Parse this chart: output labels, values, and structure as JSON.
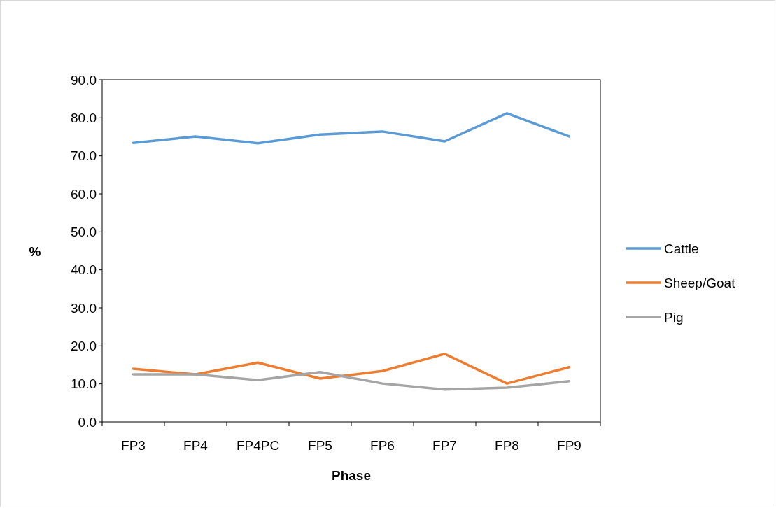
{
  "chart_data": {
    "type": "line",
    "xlabel": "Phase",
    "ylabel": "%",
    "categories": [
      "FP3",
      "FP4",
      "FP4PC",
      "FP5",
      "FP6",
      "FP7",
      "FP8",
      "FP9"
    ],
    "series": [
      {
        "name": "Cattle",
        "color": "#5b9bd5",
        "values": [
          73.4,
          75.1,
          73.3,
          75.6,
          76.4,
          73.8,
          81.2,
          75.1
        ]
      },
      {
        "name": "Sheep/Goat",
        "color": "#ed7d31",
        "values": [
          14.0,
          12.5,
          15.6,
          11.4,
          13.4,
          17.9,
          10.1,
          14.4
        ]
      },
      {
        "name": "Pig",
        "color": "#a5a5a5",
        "values": [
          12.5,
          12.5,
          11.0,
          13.1,
          10.1,
          8.5,
          9.0,
          10.7
        ]
      }
    ],
    "ylim": [
      0,
      90
    ],
    "yticks": [
      {
        "value": 0,
        "label": "0.0"
      },
      {
        "value": 10,
        "label": "10.0"
      },
      {
        "value": 20,
        "label": "20.0"
      },
      {
        "value": 30,
        "label": "30.0"
      },
      {
        "value": 40,
        "label": "40.0"
      },
      {
        "value": 50,
        "label": "50.0"
      },
      {
        "value": 60,
        "label": "60.0"
      },
      {
        "value": 70,
        "label": "70.0"
      },
      {
        "value": 80,
        "label": "80.0"
      },
      {
        "value": 90,
        "label": "90.0"
      }
    ],
    "grid": false,
    "legend": "right",
    "marker": "none",
    "line_style": "solid"
  }
}
